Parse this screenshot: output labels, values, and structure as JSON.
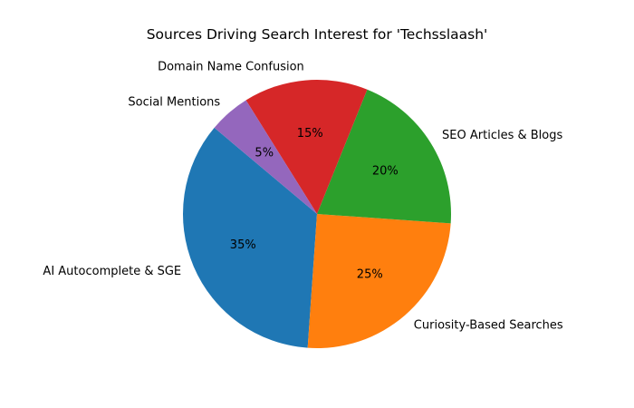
{
  "chart_data": {
    "type": "pie",
    "title": "Sources Driving Search Interest for 'Techsslaash'",
    "labels": [
      "AI Autocomplete & SGE",
      "Curiosity-Based Searches",
      "SEO Articles & Blogs",
      "Domain Name Confusion",
      "Social Mentions"
    ],
    "values": [
      35,
      25,
      20,
      15,
      5
    ],
    "percent_labels": [
      "35%",
      "25%",
      "20%",
      "15%",
      "5%"
    ],
    "colors": [
      "#1f77b4",
      "#ff7f0e",
      "#2ca02c",
      "#d62728",
      "#9467bd"
    ],
    "start_angle_deg": 140,
    "direction": "counterclockwise"
  }
}
